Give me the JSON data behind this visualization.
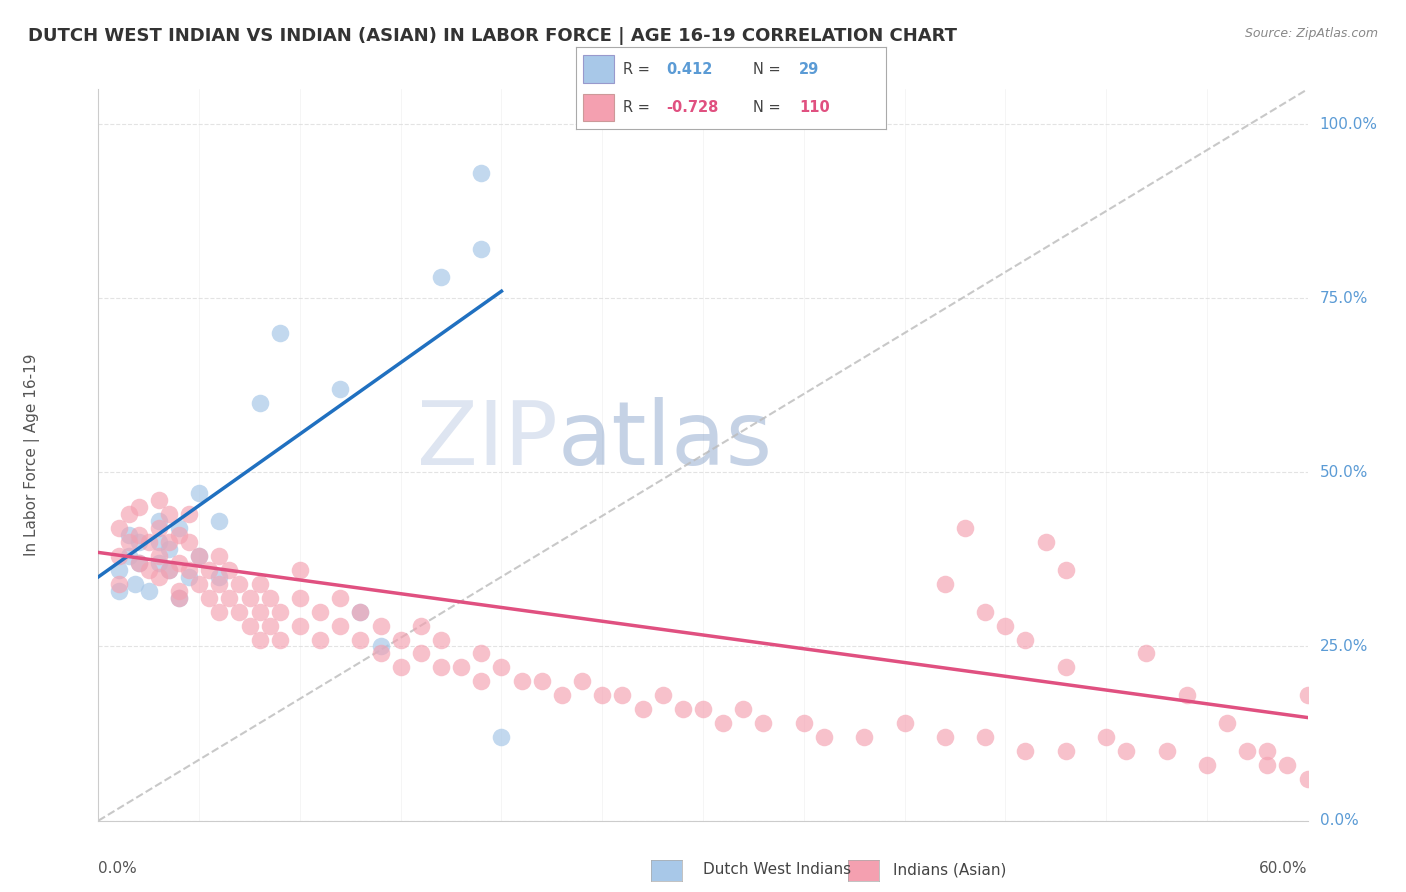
{
  "title": "DUTCH WEST INDIAN VS INDIAN (ASIAN) IN LABOR FORCE | AGE 16-19 CORRELATION CHART",
  "source": "Source: ZipAtlas.com",
  "ylabel": "In Labor Force | Age 16-19",
  "xmin": 0.0,
  "xmax": 0.6,
  "ymin": 0.0,
  "ymax": 1.05,
  "legend1_label": "Dutch West Indians",
  "legend2_label": "Indians (Asian)",
  "r1": 0.412,
  "n1": 29,
  "r2": -0.728,
  "n2": 110,
  "blue_color": "#a8c8e8",
  "pink_color": "#f4a0b0",
  "blue_line_color": "#2070c0",
  "pink_line_color": "#e05080",
  "gray_line_color": "#bbbbbb",
  "bg_color": "#ffffff",
  "grid_color": "#dddddd",
  "right_label_color": "#5b9bd5",
  "title_color": "#333333",
  "source_color": "#888888",
  "watermark_color": "#ccd8ec",
  "ytick_labels": [
    "0.0%",
    "25.0%",
    "50.0%",
    "75.0%",
    "100.0%"
  ],
  "ytick_vals": [
    0.0,
    0.25,
    0.5,
    0.75,
    1.0
  ],
  "blue_x": [
    0.01,
    0.01,
    0.015,
    0.015,
    0.018,
    0.02,
    0.02,
    0.025,
    0.03,
    0.03,
    0.03,
    0.035,
    0.035,
    0.04,
    0.04,
    0.045,
    0.05,
    0.05,
    0.06,
    0.06,
    0.08,
    0.09,
    0.12,
    0.13,
    0.14,
    0.17,
    0.19,
    0.19,
    0.2
  ],
  "blue_y": [
    0.33,
    0.36,
    0.38,
    0.41,
    0.34,
    0.37,
    0.4,
    0.33,
    0.37,
    0.4,
    0.43,
    0.36,
    0.39,
    0.32,
    0.42,
    0.35,
    0.38,
    0.47,
    0.35,
    0.43,
    0.6,
    0.7,
    0.62,
    0.3,
    0.25,
    0.78,
    0.82,
    0.93,
    0.12
  ],
  "pink_x": [
    0.01,
    0.01,
    0.01,
    0.015,
    0.015,
    0.02,
    0.02,
    0.02,
    0.025,
    0.025,
    0.03,
    0.03,
    0.03,
    0.03,
    0.035,
    0.035,
    0.035,
    0.04,
    0.04,
    0.04,
    0.04,
    0.045,
    0.045,
    0.045,
    0.05,
    0.05,
    0.055,
    0.055,
    0.06,
    0.06,
    0.06,
    0.065,
    0.065,
    0.07,
    0.07,
    0.075,
    0.075,
    0.08,
    0.08,
    0.08,
    0.085,
    0.085,
    0.09,
    0.09,
    0.1,
    0.1,
    0.1,
    0.11,
    0.11,
    0.12,
    0.12,
    0.13,
    0.13,
    0.14,
    0.14,
    0.15,
    0.15,
    0.16,
    0.16,
    0.17,
    0.17,
    0.18,
    0.19,
    0.19,
    0.2,
    0.21,
    0.22,
    0.23,
    0.24,
    0.25,
    0.26,
    0.27,
    0.28,
    0.29,
    0.3,
    0.31,
    0.32,
    0.33,
    0.35,
    0.36,
    0.38,
    0.4,
    0.42,
    0.44,
    0.46,
    0.48,
    0.5,
    0.51,
    0.53,
    0.55,
    0.57,
    0.58,
    0.59,
    0.6,
    0.61,
    0.62,
    0.63,
    0.47,
    0.52,
    0.48,
    0.43,
    0.45,
    0.54,
    0.56,
    0.58,
    0.6,
    0.42,
    0.44,
    0.46,
    0.48
  ],
  "pink_y": [
    0.42,
    0.38,
    0.34,
    0.4,
    0.44,
    0.37,
    0.41,
    0.45,
    0.36,
    0.4,
    0.35,
    0.38,
    0.42,
    0.46,
    0.36,
    0.4,
    0.44,
    0.33,
    0.37,
    0.41,
    0.32,
    0.36,
    0.4,
    0.44,
    0.34,
    0.38,
    0.32,
    0.36,
    0.3,
    0.34,
    0.38,
    0.32,
    0.36,
    0.3,
    0.34,
    0.28,
    0.32,
    0.26,
    0.3,
    0.34,
    0.28,
    0.32,
    0.26,
    0.3,
    0.28,
    0.32,
    0.36,
    0.26,
    0.3,
    0.28,
    0.32,
    0.26,
    0.3,
    0.24,
    0.28,
    0.22,
    0.26,
    0.24,
    0.28,
    0.22,
    0.26,
    0.22,
    0.2,
    0.24,
    0.22,
    0.2,
    0.2,
    0.18,
    0.2,
    0.18,
    0.18,
    0.16,
    0.18,
    0.16,
    0.16,
    0.14,
    0.16,
    0.14,
    0.14,
    0.12,
    0.12,
    0.14,
    0.12,
    0.12,
    0.1,
    0.1,
    0.12,
    0.1,
    0.1,
    0.08,
    0.1,
    0.08,
    0.08,
    0.06,
    0.08,
    0.06,
    0.06,
    0.4,
    0.24,
    0.36,
    0.42,
    0.28,
    0.18,
    0.14,
    0.1,
    0.18,
    0.34,
    0.3,
    0.26,
    0.22
  ],
  "blue_line_x": [
    0.0,
    0.2
  ],
  "blue_line_y": [
    0.35,
    0.76
  ],
  "pink_line_x": [
    0.0,
    0.6
  ],
  "pink_line_y": [
    0.385,
    0.148
  ],
  "gray_line_x": [
    0.0,
    0.6
  ],
  "gray_line_y": [
    0.0,
    1.05
  ]
}
